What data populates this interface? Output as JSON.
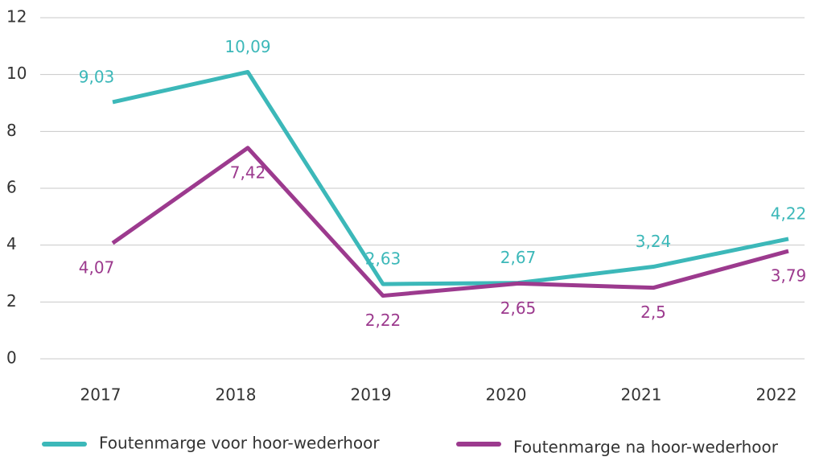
{
  "chart_data": {
    "type": "line",
    "categories": [
      "2017",
      "2018",
      "2019",
      "2020",
      "2021",
      "2022"
    ],
    "series": [
      {
        "name": "Foutenmarge voor hoor-wederhoor",
        "color": "#3cb8b9",
        "values": [
          9.03,
          10.09,
          2.63,
          2.67,
          3.24,
          4.22
        ],
        "value_labels": [
          "9,03",
          "10,09",
          "2,63",
          "2,67",
          "3,24",
          "4,22"
        ]
      },
      {
        "name": "Foutenmarge na hoor-wederhoor",
        "color": "#9c3a8e",
        "values": [
          4.07,
          7.42,
          2.22,
          2.65,
          2.5,
          3.79
        ],
        "value_labels": [
          "4,07",
          "7,42",
          "2,22",
          "2,65",
          "2,5",
          "3,79"
        ]
      }
    ],
    "ylim": [
      0,
      12
    ],
    "yticks": [
      0,
      2,
      4,
      6,
      8,
      10,
      12
    ],
    "grid": true,
    "legend": "bottom"
  }
}
